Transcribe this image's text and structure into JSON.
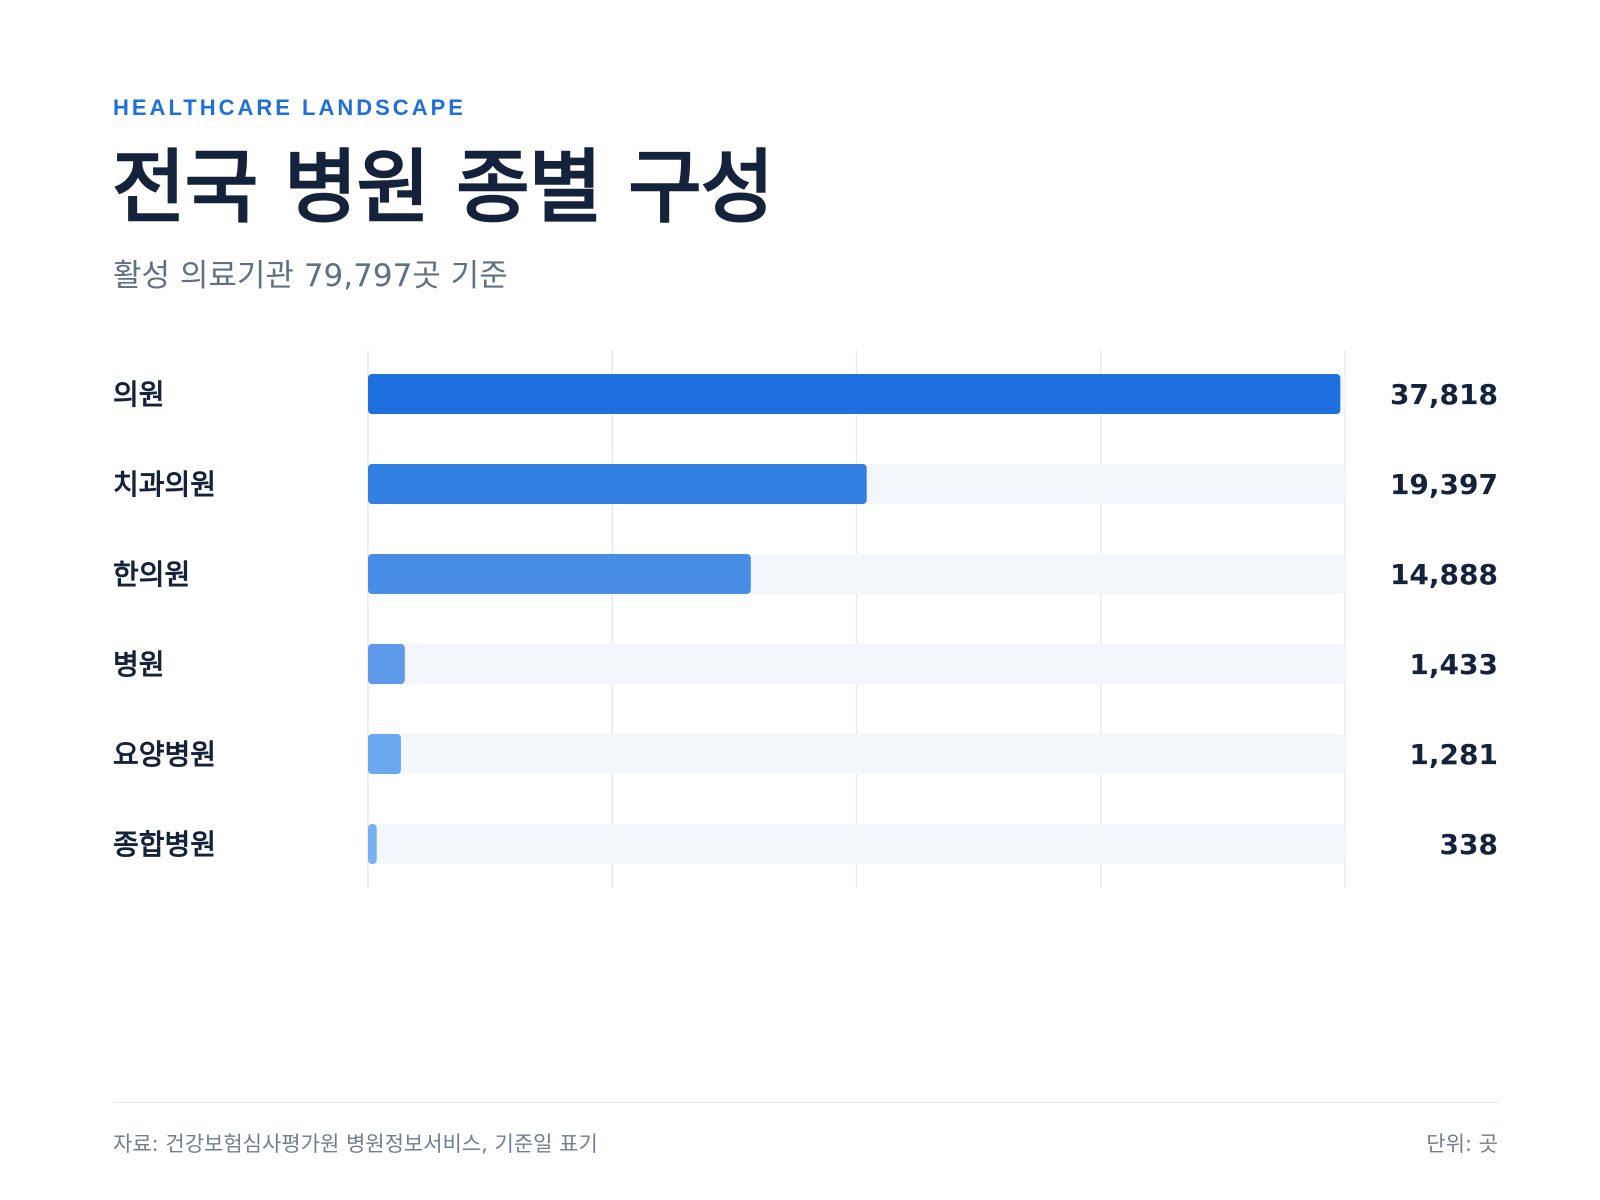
{
  "header": {
    "eyebrow": "HEALTHCARE LANDSCAPE",
    "title": "전국 병원 종별 구성",
    "subtitle": "활성 의료기관 79,797곳 기준"
  },
  "chart_data": {
    "type": "bar",
    "orientation": "horizontal",
    "categories": [
      "의원",
      "치과의원",
      "한의원",
      "병원",
      "요양병원",
      "종합병원"
    ],
    "values": [
      37818,
      19397,
      14888,
      1433,
      1281,
      338
    ],
    "value_labels": [
      "37,818",
      "19,397",
      "14,888",
      "1,433",
      "1,281",
      "338"
    ],
    "xlim": [
      0,
      38000
    ],
    "grid": true,
    "legend": "none",
    "colors": {
      "bars": [
        "#1e6fe0",
        "#3380e3",
        "#4a8de6",
        "#5d9bea",
        "#6aa7ee",
        "#78b1f0"
      ],
      "track": "#f3f6fa",
      "gridline": "#e7ebf0",
      "label": "#14233b"
    }
  },
  "footer": {
    "source": "자료: 건강보험심사평가원 병원정보서비스, 기준일 표기",
    "unit": "단위: 곳"
  }
}
